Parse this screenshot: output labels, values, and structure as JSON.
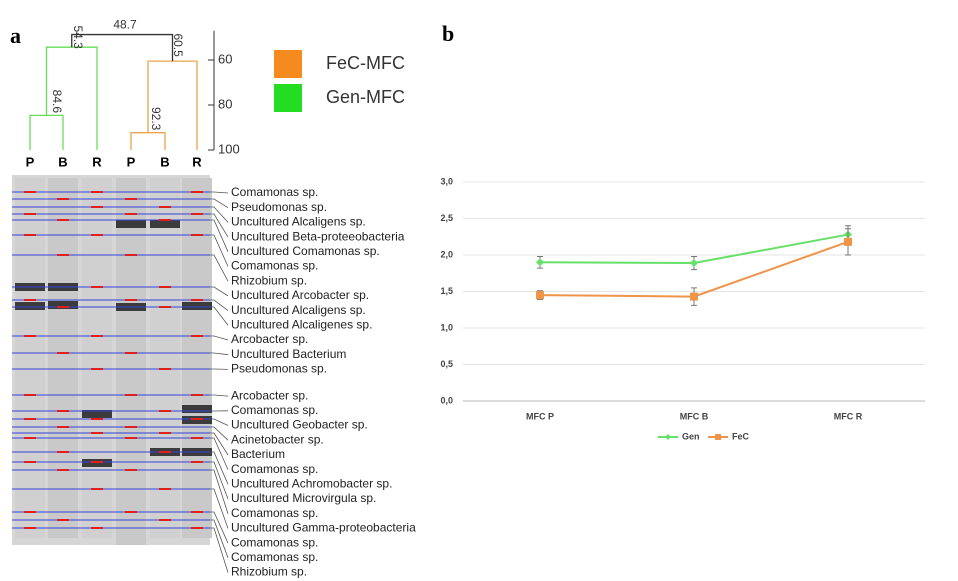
{
  "panel_a": {
    "label": "a",
    "legend": [
      {
        "label": "FeC-MFC",
        "color": "#f58a1f"
      },
      {
        "label": "Gen-MFC",
        "color": "#22dd22"
      }
    ],
    "dendrogram": {
      "ylim": [
        47,
        100
      ],
      "yticks": [
        60,
        80,
        100
      ],
      "nodes": [
        84.6,
        54.3,
        92.3,
        60.5,
        48.7
      ],
      "colors": [
        "#66dd55",
        "#e8a64a"
      ]
    },
    "lanes": [
      "P",
      "B",
      "R",
      "P",
      "B",
      "R"
    ],
    "species": [
      "Comamonas sp.",
      "Pseudomonas sp.",
      "Uncultured Alcaligens sp.",
      "Uncultured Beta-proteeobacteria",
      "Uncultured Comamonas sp.",
      "Comamonas sp.",
      "Rhizobium sp.",
      "Uncultured Arcobacter sp.",
      "Uncultured Alcaligens sp.",
      "Uncultured Alcaligenes sp.",
      "Arcobacter sp.",
      "Uncultured Bacterium",
      "Pseudomonas sp.",
      "Arcobacter sp.",
      "Comamonas sp.",
      "Uncultured Geobacter sp.",
      "Acinetobacter sp.",
      "Bacterium",
      "Comamonas sp.",
      "Uncultured Achromobacter sp.",
      "Uncultured Microvirgula sp.",
      "Comamonas sp.",
      "Uncultured Gamma-proteobacteria",
      "Comamonas sp.",
      "Comamonas sp.",
      "Rhizobium sp."
    ]
  },
  "chart_data": {
    "type": "line",
    "panel_label": "b",
    "categories": [
      "MFC P",
      "MFC B",
      "MFC R"
    ],
    "series": [
      {
        "name": "Gen",
        "color": "#66e066",
        "values": [
          1.9,
          1.89,
          2.28
        ],
        "errors": [
          0.08,
          0.09,
          0.12
        ]
      },
      {
        "name": "FeC",
        "color": "#f0944a",
        "values": [
          1.45,
          1.43,
          2.18
        ],
        "errors": [
          0.06,
          0.12,
          0.18
        ]
      }
    ],
    "ylim": [
      0,
      3
    ],
    "yticks": [
      {
        "value": 0,
        "label": "0,0"
      },
      {
        "value": 0.5,
        "label": "0,5"
      },
      {
        "value": 1,
        "label": "1,0"
      },
      {
        "value": 1.5,
        "label": "1,5"
      },
      {
        "value": 2,
        "label": "2,0"
      },
      {
        "value": 2.5,
        "label": "2,5"
      },
      {
        "value": 3,
        "label": "3,0"
      }
    ],
    "grid": true,
    "legend": "bottom"
  }
}
